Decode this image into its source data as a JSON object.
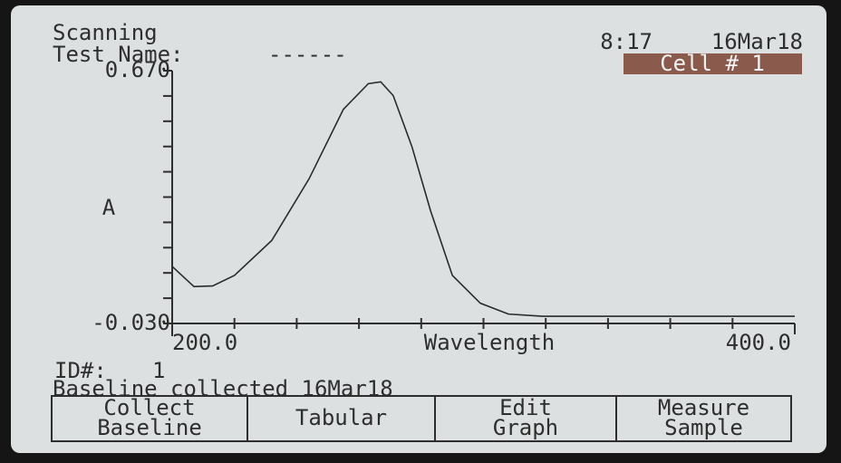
{
  "header": {
    "mode": "Scanning",
    "test_name_label": "Test Name:",
    "test_name": "------",
    "time": "8:17",
    "date": "16Mar18",
    "cell": "Cell # 1"
  },
  "chart_data": {
    "type": "line",
    "y_label": "A",
    "x_label": "Wavelength",
    "xlim": [
      200,
      400
    ],
    "ylim": [
      -0.03,
      0.67
    ],
    "xticks": [
      {
        "value": 200,
        "label": "200.0"
      },
      {
        "value": 400,
        "label": "400.0"
      }
    ],
    "yticks": [
      {
        "value": 0.67,
        "label": "0.670"
      },
      {
        "value": -0.03,
        "label": "-0.030"
      }
    ],
    "minor_xticks": [
      220,
      240,
      260,
      280,
      300,
      320,
      340,
      360,
      380
    ],
    "minor_yticks": [
      0.6,
      0.53,
      0.46,
      0.39,
      0.32,
      0.25,
      0.18,
      0.11,
      0.04
    ],
    "color": "#2a2a2a",
    "x": [
      200,
      207,
      213,
      220,
      232,
      244,
      255,
      263,
      267,
      271,
      277,
      283,
      290,
      299,
      308,
      319,
      349,
      400
    ],
    "values": [
      0.128,
      0.072,
      0.074,
      0.103,
      0.2,
      0.371,
      0.563,
      0.634,
      0.639,
      0.601,
      0.46,
      0.282,
      0.103,
      0.026,
      -0.004,
      -0.01,
      -0.01,
      -0.01
    ]
  },
  "status": {
    "id_label": "ID#:",
    "id": "1",
    "baseline": "Baseline collected 16Mar18"
  },
  "buttons": [
    {
      "lines": [
        "Collect",
        "Baseline"
      ]
    },
    {
      "lines": [
        "Tabular"
      ]
    },
    {
      "lines": [
        "Edit",
        "Graph"
      ]
    },
    {
      "lines": [
        "Measure",
        "Sample"
      ]
    }
  ]
}
